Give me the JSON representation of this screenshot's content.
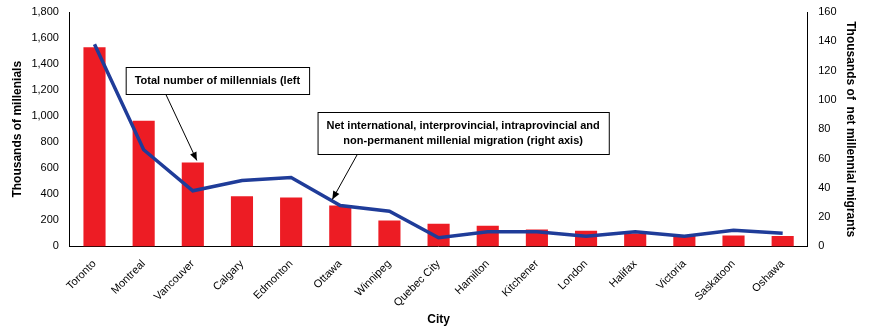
{
  "chart_data": {
    "type": "bar",
    "categories": [
      "Toronto",
      "Montreal",
      "Vancouver",
      "Calgary",
      "Edmonton",
      "Ottawa",
      "Winnipeg",
      "Quebec City",
      "Hamilton",
      "Kitchener",
      "London",
      "Halifax",
      "Victoria",
      "Saskatoon",
      "Oshawa"
    ],
    "x_label": "City",
    "y_label": "Thousands of millenials",
    "y2_label": "Thousands of  net millennial migrants",
    "ylim": [
      0,
      1800
    ],
    "yticks": [
      0,
      200,
      400,
      600,
      800,
      {
        "value": 1000,
        "label": "1,000"
      },
      {
        "value": 1200,
        "label": "1,200"
      },
      {
        "value": 1400,
        "label": "1,400"
      },
      {
        "value": 1600,
        "label": "1,600"
      },
      {
        "value": 1800,
        "label": "1,800"
      }
    ],
    "y2lim": [
      0,
      160
    ],
    "y2ticks": [
      0,
      20,
      40,
      60,
      80,
      100,
      120,
      140,
      160
    ],
    "grid": false,
    "series": [
      {
        "type": "bar",
        "color": "#ed1c24",
        "values": [
          1530,
          965,
          645,
          385,
          375,
          315,
          200,
          175,
          160,
          130,
          120,
          100,
          85,
          85,
          80
        ]
      },
      {
        "type": "line",
        "axis": "y2",
        "color": "#1f3c99",
        "marker": "none",
        "line_style": "solid",
        "values": [
          138,
          66,
          38,
          45,
          47,
          28,
          24,
          6,
          10,
          10,
          7,
          10,
          7,
          11,
          9
        ]
      }
    ],
    "annotations": [
      "Total number of millennials (left",
      "Net international, interprovincial, intraprovincial and\nnon-permanent millenial migration (right axis)"
    ]
  }
}
